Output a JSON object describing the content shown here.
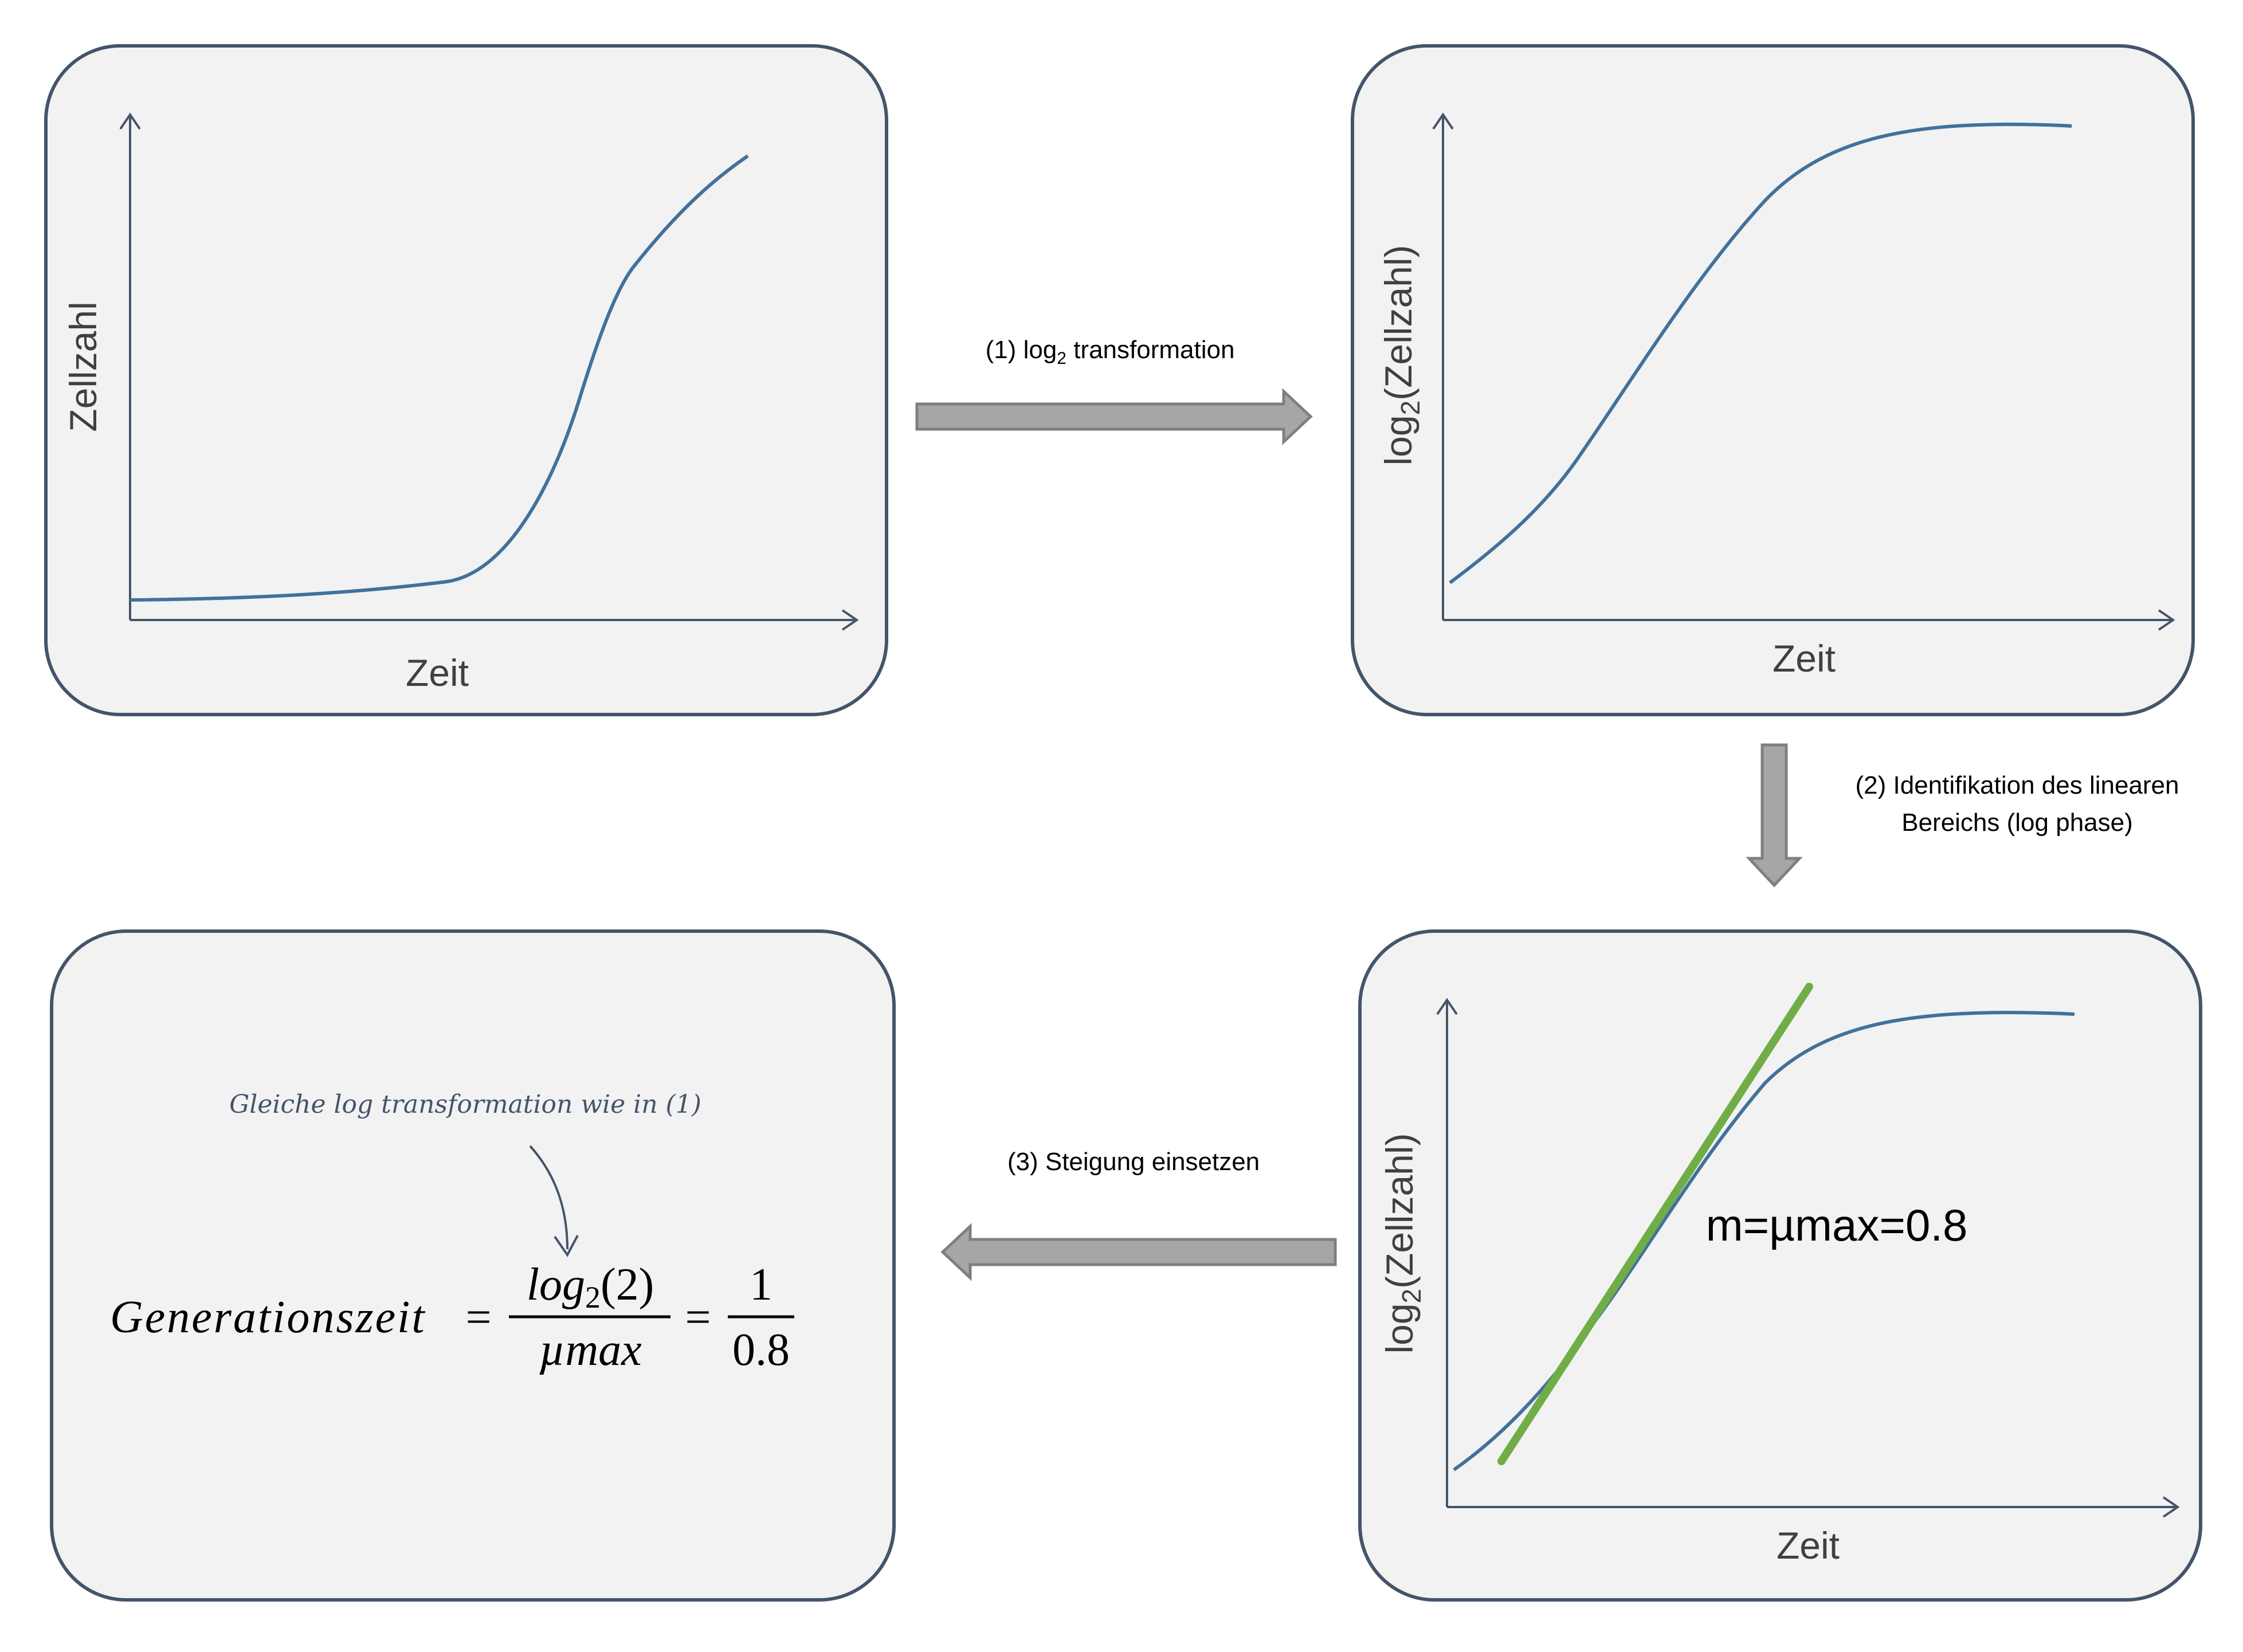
{
  "panels": {
    "raw": {
      "ylabel": "Zellzahl",
      "xlabel": "Zeit"
    },
    "log": {
      "ylabel_main": "log",
      "ylabel_sub": "2",
      "ylabel_rest": "(Zellzahl)",
      "xlabel": "Zeit"
    },
    "fit": {
      "ylabel_main": "log",
      "ylabel_sub": "2",
      "ylabel_rest": "(Zellzahl)",
      "xlabel": "Zeit",
      "slope_label": "m=µmax=0.8"
    },
    "formula": {
      "annotation": "Gleiche log transformation wie in (1)",
      "lhs": "Generationszeit",
      "eq": "=",
      "num1_main": "log",
      "num1_sub": "2",
      "num1_rest": "(2)",
      "den1": "µmax",
      "num2": "1",
      "den2": "0.8"
    }
  },
  "steps": {
    "step1_pre": "(1) log",
    "step1_sub": "2",
    "step1_post": " transformation",
    "step2_line1": "(2) Identifikation des linearen",
    "step2_line2": "Bereichs (log phase)",
    "step3": "(3) Steigung einsetzen"
  }
}
